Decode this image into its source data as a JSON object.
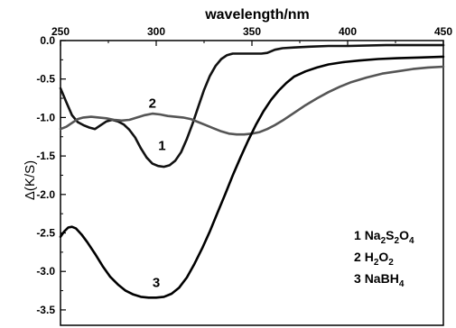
{
  "chart_data": {
    "type": "line",
    "title": "",
    "xlabel": "wavelength/nm",
    "ylabel": "Δ(K/S)",
    "x_axis_position": "top",
    "xlim": [
      250,
      450
    ],
    "ylim": [
      -3.7,
      0.0
    ],
    "xticks": [
      "250",
      "300",
      "350",
      "400",
      "450"
    ],
    "yticks": [
      "0.0",
      "-0.5",
      "-1.0",
      "-1.5",
      "-2.0",
      "-2.5",
      "-3.0",
      "-3.5"
    ],
    "grid": false,
    "legend_placement": "bottom-right",
    "legend": [
      {
        "num": "1",
        "parts": [
          {
            "t": "Na"
          },
          {
            "t": "2",
            "sub": true
          },
          {
            "t": "S"
          },
          {
            "t": "2",
            "sub": true
          },
          {
            "t": "O"
          },
          {
            "t": "4",
            "sub": true
          }
        ]
      },
      {
        "num": "2",
        "parts": [
          {
            "t": "H"
          },
          {
            "t": "2",
            "sub": true
          },
          {
            "t": "O"
          },
          {
            "t": "2",
            "sub": true
          }
        ]
      },
      {
        "num": "3",
        "parts": [
          {
            "t": "NaBH"
          },
          {
            "t": "4",
            "sub": true
          }
        ]
      }
    ],
    "series": [
      {
        "label": "1",
        "label_at": [
          303,
          -1.42
        ],
        "color": "#111111",
        "points": [
          [
            250,
            -0.62
          ],
          [
            253,
            -0.8
          ],
          [
            256,
            -0.97
          ],
          [
            259,
            -1.06
          ],
          [
            262,
            -1.1
          ],
          [
            265,
            -1.13
          ],
          [
            268,
            -1.15
          ],
          [
            271,
            -1.1
          ],
          [
            274,
            -1.05
          ],
          [
            277,
            -1.03
          ],
          [
            280,
            -1.05
          ],
          [
            283,
            -1.09
          ],
          [
            286,
            -1.16
          ],
          [
            289,
            -1.26
          ],
          [
            292,
            -1.4
          ],
          [
            295,
            -1.52
          ],
          [
            298,
            -1.6
          ],
          [
            301,
            -1.63
          ],
          [
            304,
            -1.64
          ],
          [
            307,
            -1.62
          ],
          [
            310,
            -1.56
          ],
          [
            313,
            -1.45
          ],
          [
            316,
            -1.28
          ],
          [
            319,
            -1.08
          ],
          [
            322,
            -0.86
          ],
          [
            325,
            -0.64
          ],
          [
            328,
            -0.46
          ],
          [
            331,
            -0.33
          ],
          [
            334,
            -0.24
          ],
          [
            337,
            -0.19
          ],
          [
            340,
            -0.17
          ],
          [
            345,
            -0.17
          ],
          [
            350,
            -0.17
          ],
          [
            355,
            -0.17
          ],
          [
            358,
            -0.16
          ],
          [
            362,
            -0.12
          ],
          [
            366,
            -0.1
          ],
          [
            372,
            -0.09
          ],
          [
            380,
            -0.08
          ],
          [
            390,
            -0.07
          ],
          [
            400,
            -0.07
          ],
          [
            420,
            -0.06
          ],
          [
            435,
            -0.06
          ],
          [
            450,
            -0.06
          ]
        ]
      },
      {
        "label": "2",
        "label_at": [
          298,
          -0.87
        ],
        "color": "#555555",
        "points": [
          [
            250,
            -1.15
          ],
          [
            253,
            -1.12
          ],
          [
            256,
            -1.07
          ],
          [
            259,
            -1.02
          ],
          [
            262,
            -1.0
          ],
          [
            266,
            -0.99
          ],
          [
            270,
            -1.0
          ],
          [
            274,
            -1.01
          ],
          [
            278,
            -1.03
          ],
          [
            282,
            -1.04
          ],
          [
            286,
            -1.03
          ],
          [
            290,
            -1.0
          ],
          [
            294,
            -0.97
          ],
          [
            298,
            -0.95
          ],
          [
            302,
            -0.96
          ],
          [
            306,
            -0.98
          ],
          [
            310,
            -0.99
          ],
          [
            314,
            -1.0
          ],
          [
            318,
            -1.02
          ],
          [
            322,
            -1.06
          ],
          [
            326,
            -1.1
          ],
          [
            330,
            -1.14
          ],
          [
            334,
            -1.18
          ],
          [
            338,
            -1.21
          ],
          [
            342,
            -1.22
          ],
          [
            346,
            -1.22
          ],
          [
            350,
            -1.21
          ],
          [
            354,
            -1.19
          ],
          [
            358,
            -1.15
          ],
          [
            362,
            -1.1
          ],
          [
            366,
            -1.04
          ],
          [
            372,
            -0.94
          ],
          [
            378,
            -0.84
          ],
          [
            384,
            -0.75
          ],
          [
            390,
            -0.67
          ],
          [
            396,
            -0.6
          ],
          [
            402,
            -0.54
          ],
          [
            410,
            -0.48
          ],
          [
            418,
            -0.43
          ],
          [
            426,
            -0.4
          ],
          [
            434,
            -0.37
          ],
          [
            442,
            -0.35
          ],
          [
            450,
            -0.34
          ]
        ]
      },
      {
        "label": "3",
        "label_at": [
          300,
          -3.2
        ],
        "color": "#000000",
        "points": [
          [
            250,
            -2.55
          ],
          [
            252,
            -2.48
          ],
          [
            254,
            -2.43
          ],
          [
            256,
            -2.42
          ],
          [
            258,
            -2.44
          ],
          [
            261,
            -2.52
          ],
          [
            264,
            -2.62
          ],
          [
            268,
            -2.77
          ],
          [
            272,
            -2.93
          ],
          [
            276,
            -3.07
          ],
          [
            280,
            -3.17
          ],
          [
            284,
            -3.25
          ],
          [
            288,
            -3.3
          ],
          [
            292,
            -3.33
          ],
          [
            296,
            -3.34
          ],
          [
            300,
            -3.34
          ],
          [
            304,
            -3.33
          ],
          [
            308,
            -3.29
          ],
          [
            312,
            -3.21
          ],
          [
            316,
            -3.08
          ],
          [
            320,
            -2.9
          ],
          [
            324,
            -2.7
          ],
          [
            328,
            -2.48
          ],
          [
            332,
            -2.24
          ],
          [
            336,
            -2.0
          ],
          [
            340,
            -1.75
          ],
          [
            344,
            -1.52
          ],
          [
            348,
            -1.3
          ],
          [
            352,
            -1.1
          ],
          [
            356,
            -0.92
          ],
          [
            360,
            -0.77
          ],
          [
            364,
            -0.65
          ],
          [
            368,
            -0.55
          ],
          [
            372,
            -0.47
          ],
          [
            378,
            -0.4
          ],
          [
            384,
            -0.35
          ],
          [
            390,
            -0.31
          ],
          [
            398,
            -0.28
          ],
          [
            406,
            -0.26
          ],
          [
            416,
            -0.24
          ],
          [
            426,
            -0.23
          ],
          [
            438,
            -0.22
          ],
          [
            450,
            -0.21
          ]
        ]
      }
    ]
  }
}
